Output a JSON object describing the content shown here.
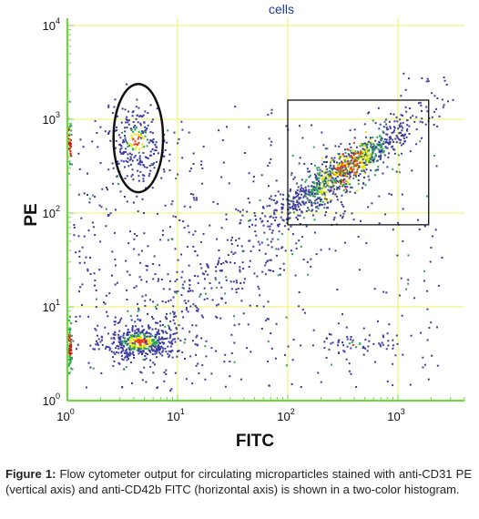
{
  "chart_data": {
    "type": "scatter",
    "title": "cells",
    "xlabel": "FITC",
    "ylabel": "PE",
    "xscale": "log",
    "yscale": "log",
    "xlim": [
      1,
      4000
    ],
    "ylim": [
      1,
      14000
    ],
    "x_tick_labels": [
      {
        "base": "10",
        "exp": "0"
      },
      {
        "base": "10",
        "exp": "1"
      },
      {
        "base": "10",
        "exp": "2"
      },
      {
        "base": "10",
        "exp": "3"
      }
    ],
    "y_tick_labels": [
      {
        "base": "10",
        "exp": "0"
      },
      {
        "base": "10",
        "exp": "1"
      },
      {
        "base": "10",
        "exp": "2"
      },
      {
        "base": "10",
        "exp": "3"
      },
      {
        "base": "10",
        "exp": "4"
      }
    ],
    "grid": true,
    "grid_color": "#f0f060",
    "axis_color": "#66dd33",
    "populations": [
      {
        "x_center": 4.5,
        "y_center": 4.3,
        "x_spread": 0.16,
        "y_spread": 0.09,
        "density": "high",
        "points": 420
      },
      {
        "x_center": 4.2,
        "y_center": 600,
        "x_spread": 0.14,
        "y_spread": 0.2,
        "density": "medium",
        "points": 220
      },
      {
        "x_center": 330,
        "y_center": 300,
        "x_spread": 0.28,
        "y_spread": 0.28,
        "density": "very high",
        "points": 900
      },
      {
        "x_center": 1.0,
        "y_center": 4.0,
        "x_spread": 0.01,
        "y_spread": 0.13,
        "density": "high",
        "points": 80
      },
      {
        "x_center": 1.0,
        "y_center": 600,
        "x_spread": 0.01,
        "y_spread": 0.15,
        "density": "high",
        "points": 50
      },
      {
        "x_center": 400,
        "y_center": 4.0,
        "x_spread": 0.18,
        "y_spread": 0.08,
        "density": "low",
        "points": 60
      }
    ],
    "gates": [
      {
        "shape": "ellipse",
        "x_center": 4.4,
        "y_center": 630,
        "x_range": [
          2.7,
          7.6
        ],
        "y_range": [
          140,
          2000
        ]
      },
      {
        "shape": "rectangle",
        "x_range": [
          100,
          1900
        ],
        "y_range": [
          75,
          1600
        ]
      }
    ],
    "colors": {
      "low": "#3a3aa0",
      "medium": "#2aa050",
      "high": "#e8e800",
      "very_high": "#e83a14",
      "axis_edge": "#dd1111"
    }
  },
  "caption": {
    "label": "Figure 1:",
    "text": " Flow cytometer output for circulating microparticles stained with anti-CD31 PE (vertical axis) and anti-CD42b FITC (horizontal axis) is shown in a two-color histogram."
  }
}
